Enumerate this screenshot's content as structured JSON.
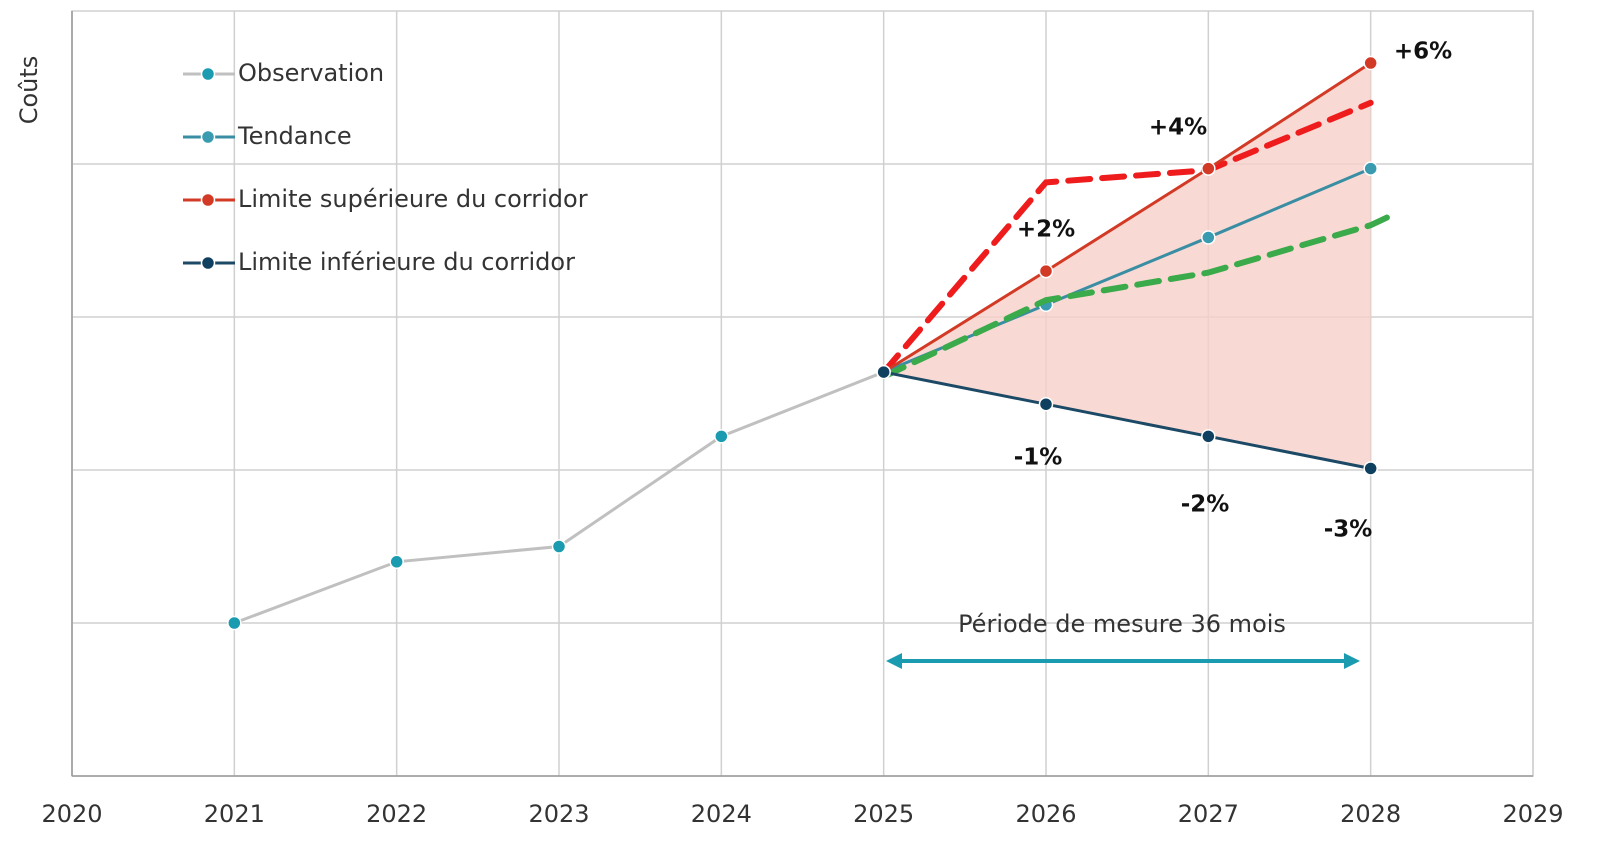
{
  "chart_data": {
    "type": "line",
    "y_label": "Coûts",
    "xlim": [
      2020,
      2029
    ],
    "xticks": [
      2020,
      2021,
      2022,
      2023,
      2024,
      2025,
      2026,
      2027,
      2028,
      2029
    ],
    "ylim": [
      0,
      5
    ],
    "yticks": [
      1,
      2,
      3,
      4
    ],
    "grid": true,
    "legend": "top-left",
    "series": [
      {
        "name": "Observation",
        "color": "#c0c0c0",
        "marker_color": "#1a9bb0",
        "x": [
          2021,
          2022,
          2023,
          2024,
          2025
        ],
        "values": [
          1.0,
          1.4,
          1.5,
          2.22,
          2.64
        ]
      },
      {
        "name": "Tendance",
        "color": "#3a8ea3",
        "marker_color": "#3a9bb0",
        "x": [
          2025,
          2026,
          2027,
          2028
        ],
        "values": [
          2.64,
          3.08,
          3.52,
          3.97
        ]
      },
      {
        "name": "Limite supérieure du corridor",
        "color": "#d33a26",
        "marker_color": "#d33a26",
        "x": [
          2025,
          2026,
          2027,
          2028
        ],
        "values": [
          2.64,
          3.3,
          3.97,
          4.66
        ]
      },
      {
        "name": "Limite inférieure du corridor",
        "color": "#1c4a66",
        "marker_color": "#0f4060",
        "x": [
          2025,
          2026,
          2027,
          2028
        ],
        "values": [
          2.64,
          2.43,
          2.22,
          2.01
        ]
      },
      {
        "color": "#ee1c1c",
        "dashed": true,
        "x": [
          2025,
          2026,
          2027,
          2028
        ],
        "values": [
          2.64,
          3.88,
          3.96,
          4.4
        ]
      },
      {
        "color": "#3aaa4a",
        "dashed": true,
        "x": [
          2025,
          2026,
          2027,
          2028,
          2028.1
        ],
        "values": [
          2.61,
          3.11,
          3.29,
          3.6,
          3.65
        ]
      }
    ],
    "corridor_fill": "#f8d0c8",
    "annotations": [
      "+2%",
      "+4%",
      "+6%",
      "-1%",
      "-2%",
      "-3%"
    ],
    "period_label": "Période de mesure 36 mois",
    "period_color": "#1a9bb0"
  }
}
